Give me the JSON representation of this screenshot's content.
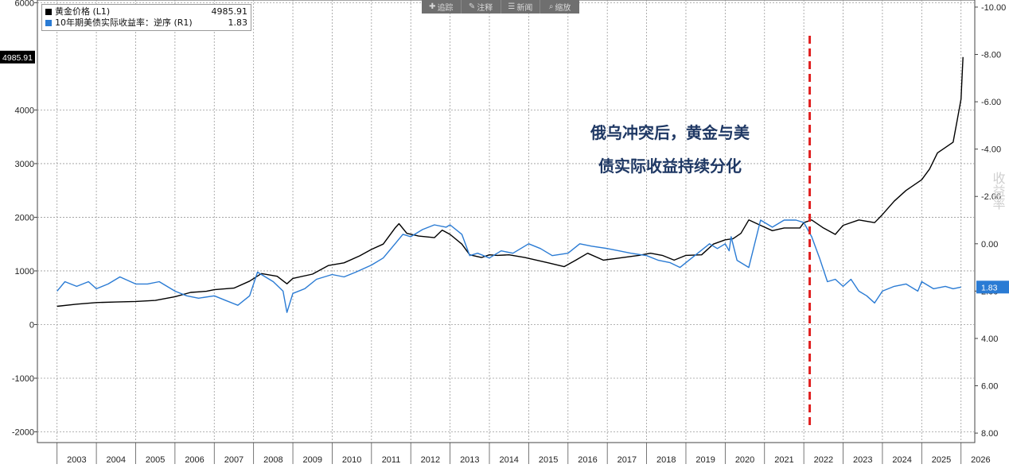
{
  "toolbar": {
    "buttons": [
      {
        "icon": "plus-icon",
        "label": "追踪"
      },
      {
        "icon": "pencil-icon",
        "label": "注释"
      },
      {
        "icon": "news-icon",
        "label": "新闻"
      },
      {
        "icon": "search-icon",
        "label": "缩放"
      }
    ]
  },
  "annotation": {
    "line1": "俄乌冲突后，黄金与美",
    "line2": "债实际收益持续分化"
  },
  "chart_data": {
    "type": "line",
    "title": "",
    "xlabel": "",
    "grid": true,
    "x_tick_labels": [
      "2003",
      "2004",
      "2005",
      "2006",
      "2007",
      "2008",
      "2009",
      "2010",
      "2011",
      "2012",
      "2013",
      "2014",
      "2015",
      "2016",
      "2017",
      "2018",
      "2019",
      "2020",
      "2021",
      "2022",
      "2023",
      "2024",
      "2025",
      "2026"
    ],
    "left_axis": {
      "ylim": [
        -2200,
        6050
      ],
      "ticks": [
        6000,
        4000,
        3000,
        2000,
        1000,
        0,
        -1000,
        -2000
      ]
    },
    "right_axis": {
      "inverted": true,
      "ylim": [
        -10.3,
        8.4
      ],
      "ticks": [
        "-10.00",
        "-8.00",
        "-6.00",
        "-4.00",
        "-2.00",
        "0.00",
        "2.00",
        "4.00",
        "6.00",
        "8.00"
      ],
      "tick_values": [
        -10,
        -8,
        -6,
        -4,
        -2,
        0,
        2,
        4,
        6,
        8
      ]
    },
    "series": [
      {
        "name": "黄金价格 (L1)",
        "axis": "left",
        "color": "#000000",
        "last_value": "4985.91",
        "x": [
          2003.0,
          2003.5,
          2004.0,
          2004.5,
          2005.0,
          2005.5,
          2006.0,
          2006.4,
          2006.8,
          2007.0,
          2007.5,
          2007.9,
          2008.2,
          2008.6,
          2008.85,
          2009.0,
          2009.5,
          2009.9,
          2010.3,
          2010.7,
          2011.0,
          2011.3,
          2011.6,
          2011.7,
          2011.9,
          2012.2,
          2012.6,
          2012.8,
          2013.0,
          2013.3,
          2013.5,
          2013.8,
          2014.0,
          2014.2,
          2014.5,
          2014.9,
          2015.2,
          2015.5,
          2015.9,
          2016.2,
          2016.5,
          2016.9,
          2017.2,
          2017.5,
          2017.8,
          2018.1,
          2018.4,
          2018.7,
          2019.0,
          2019.4,
          2019.7,
          2020.0,
          2020.2,
          2020.4,
          2020.6,
          2020.9,
          2021.2,
          2021.5,
          2021.9,
          2022.0,
          2022.2,
          2022.5,
          2022.8,
          2023.0,
          2023.4,
          2023.8,
          2024.0,
          2024.3,
          2024.6,
          2024.9,
          2025.0,
          2025.2,
          2025.4,
          2025.6,
          2025.8,
          2025.9,
          2026.0,
          2026.05
        ],
        "y": [
          340,
          380,
          410,
          420,
          430,
          450,
          520,
          600,
          620,
          650,
          680,
          810,
          950,
          900,
          760,
          860,
          940,
          1100,
          1150,
          1280,
          1400,
          1500,
          1800,
          1880,
          1700,
          1650,
          1620,
          1760,
          1680,
          1500,
          1300,
          1250,
          1300,
          1290,
          1300,
          1250,
          1200,
          1150,
          1080,
          1200,
          1330,
          1200,
          1230,
          1260,
          1290,
          1330,
          1290,
          1200,
          1290,
          1300,
          1500,
          1580,
          1600,
          1700,
          1950,
          1850,
          1750,
          1800,
          1800,
          1900,
          1950,
          1800,
          1680,
          1850,
          1950,
          1900,
          2050,
          2300,
          2500,
          2650,
          2700,
          2900,
          3200,
          3300,
          3400,
          3800,
          4200,
          4985.91
        ]
      },
      {
        "name": "10年期美债实际收益率：逆序 (R1)",
        "axis": "right",
        "color": "#2a7bd4",
        "last_value": "1.83",
        "x": [
          2003.0,
          2003.2,
          2003.5,
          2003.8,
          2004.0,
          2004.3,
          2004.6,
          2005.0,
          2005.3,
          2005.6,
          2006.0,
          2006.3,
          2006.6,
          2007.0,
          2007.3,
          2007.6,
          2007.9,
          2008.1,
          2008.3,
          2008.5,
          2008.75,
          2008.85,
          2009.0,
          2009.3,
          2009.6,
          2010.0,
          2010.3,
          2010.6,
          2011.0,
          2011.3,
          2011.6,
          2011.8,
          2012.0,
          2012.3,
          2012.6,
          2012.9,
          2013.0,
          2013.3,
          2013.5,
          2013.7,
          2014.0,
          2014.3,
          2014.6,
          2015.0,
          2015.3,
          2015.6,
          2016.0,
          2016.3,
          2016.6,
          2017.0,
          2017.3,
          2017.6,
          2018.0,
          2018.3,
          2018.6,
          2018.85,
          2019.0,
          2019.3,
          2019.6,
          2019.8,
          2020.0,
          2020.1,
          2020.15,
          2020.3,
          2020.6,
          2020.9,
          2021.2,
          2021.5,
          2021.8,
          2022.0,
          2022.2,
          2022.4,
          2022.6,
          2022.8,
          2023.0,
          2023.2,
          2023.4,
          2023.6,
          2023.8,
          2024.0,
          2024.3,
          2024.6,
          2024.9,
          2025.0,
          2025.3,
          2025.6,
          2025.8,
          2026.0
        ],
        "y": [
          2.0,
          1.6,
          1.8,
          1.6,
          1.9,
          1.7,
          1.4,
          1.7,
          1.7,
          1.6,
          2.0,
          2.2,
          2.3,
          2.2,
          2.4,
          2.6,
          2.2,
          1.2,
          1.4,
          1.6,
          2.0,
          2.9,
          2.1,
          1.9,
          1.5,
          1.3,
          1.4,
          1.2,
          0.9,
          0.6,
          0.0,
          -0.4,
          -0.3,
          -0.6,
          -0.8,
          -0.7,
          -0.8,
          -0.4,
          0.5,
          0.4,
          0.6,
          0.3,
          0.4,
          0.0,
          0.2,
          0.5,
          0.4,
          0.0,
          0.1,
          0.2,
          0.3,
          0.4,
          0.5,
          0.7,
          0.8,
          1.0,
          0.8,
          0.4,
          0.0,
          0.2,
          0.0,
          0.3,
          -0.3,
          0.7,
          1.0,
          -1.0,
          -0.7,
          -1.0,
          -1.0,
          -0.9,
          -0.3,
          0.6,
          1.6,
          1.5,
          1.8,
          1.5,
          2.0,
          2.2,
          2.5,
          2.0,
          1.8,
          1.7,
          2.0,
          1.6,
          1.9,
          1.8,
          1.9,
          1.83
        ]
      }
    ],
    "left_value_label": "4985.91",
    "right_value_label": "1.83",
    "event_line": {
      "x": 2022.15,
      "color": "#e02020"
    },
    "right_side_label": "收益率"
  }
}
